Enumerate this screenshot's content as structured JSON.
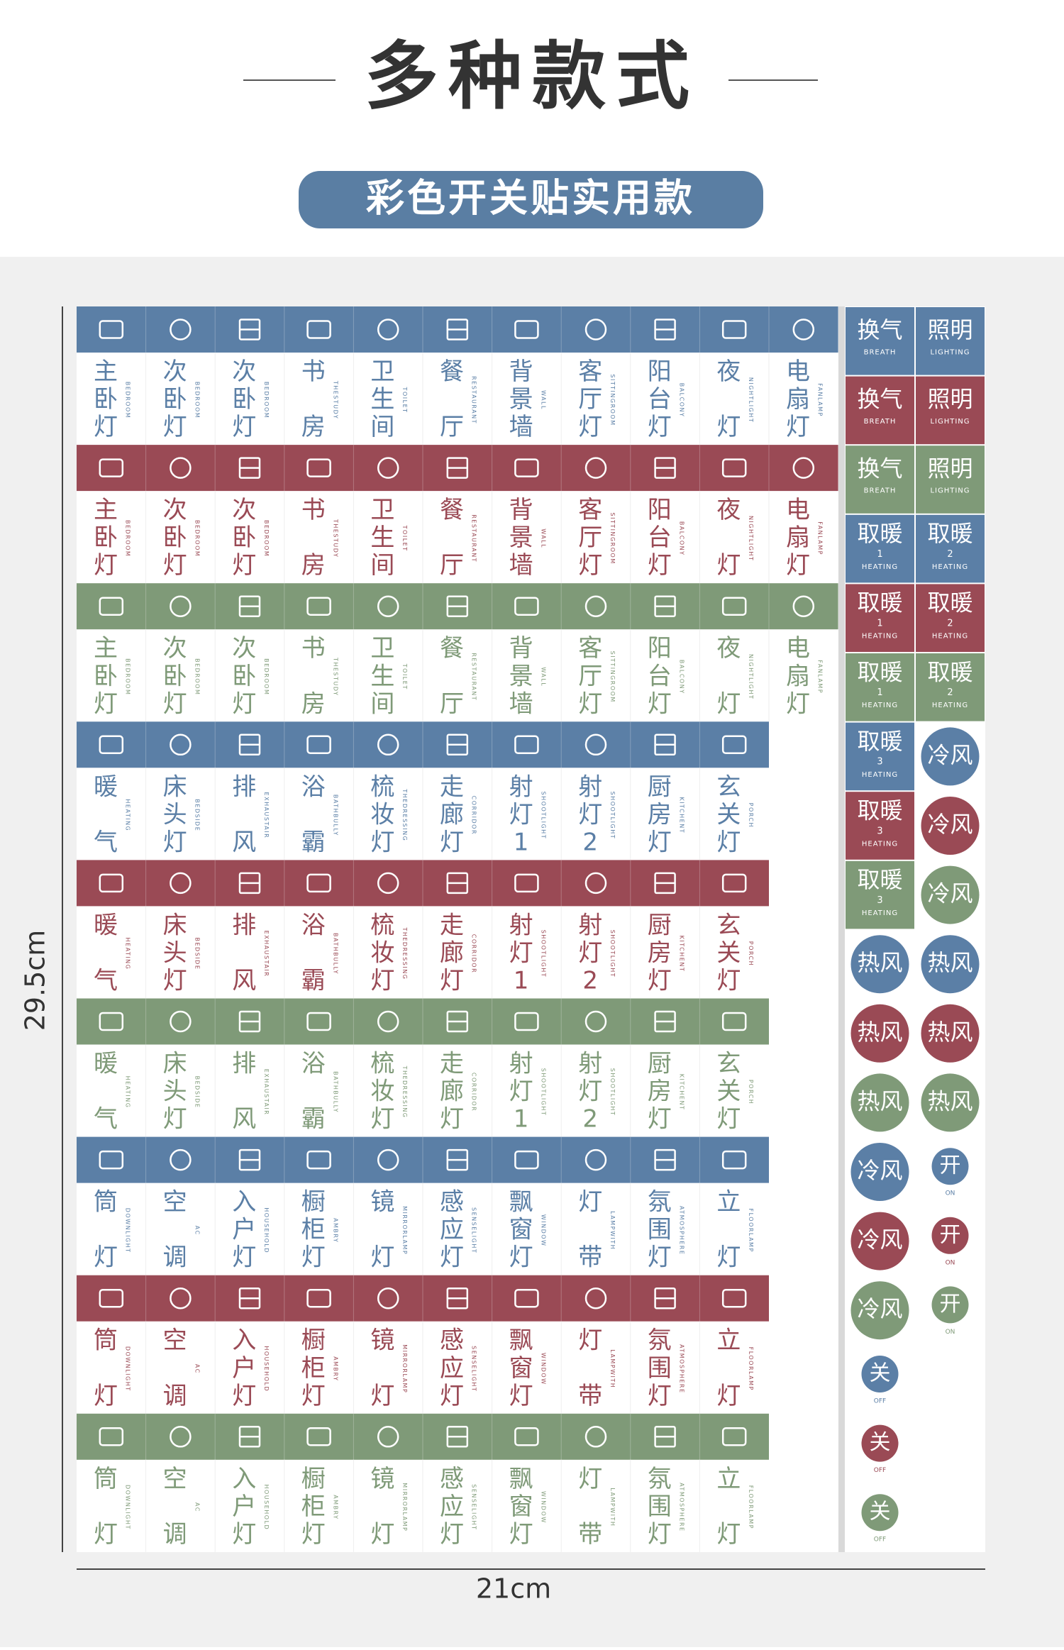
{
  "header": {
    "title": "多种款式",
    "subtitle": "彩色开关贴实用款"
  },
  "colors": {
    "blue": "#5b7fa6",
    "red": "#9a4a55",
    "green": "#7f9a78"
  },
  "sheet": {
    "row_colors": [
      "blue",
      "red",
      "green"
    ],
    "groups": [
      {
        "items": [
          {
            "label": "主卧灯",
            "en": "BEDROOM"
          },
          {
            "label": "次卧灯",
            "en": "BEDROOM"
          },
          {
            "label": "次卧灯",
            "en": "BEDROOM"
          },
          {
            "label": "书房",
            "en": "THESTUDY"
          },
          {
            "label": "卫生间",
            "en": "TOILET"
          },
          {
            "label": "餐厅",
            "en": "RESTAURANT"
          },
          {
            "label": "背景墙",
            "en": "WALL"
          },
          {
            "label": "客厅灯",
            "en": "SITTINGROOM"
          },
          {
            "label": "阳台灯",
            "en": "BALCONY"
          },
          {
            "label": "夜灯",
            "en": "NIGHTLIGHT"
          },
          {
            "label": "电扇灯",
            "en": "FANLAMP"
          }
        ]
      },
      {
        "items": [
          {
            "label": "暖气",
            "en": "HEATING"
          },
          {
            "label": "床头灯",
            "en": "BEDSIDE"
          },
          {
            "label": "排风",
            "en": "EXHAUSTAIR"
          },
          {
            "label": "浴霸",
            "en": "BATHBULLY"
          },
          {
            "label": "梳妆灯",
            "en": "THEDRESSING"
          },
          {
            "label": "走廊灯",
            "en": "CORRIDOR"
          },
          {
            "label": "射灯1",
            "en": "SHOOTLIGHT"
          },
          {
            "label": "射灯2",
            "en": "SHOOTLIGHT"
          },
          {
            "label": "厨房灯",
            "en": "KITCHENT"
          },
          {
            "label": "玄关灯",
            "en": "PORCH"
          }
        ]
      },
      {
        "items": [
          {
            "label": "筒灯",
            "en": "DOWNLIGHT"
          },
          {
            "label": "空调",
            "en": "AC"
          },
          {
            "label": "入户灯",
            "en": "HOUSEHOLD"
          },
          {
            "label": "橱柜灯",
            "en": "AMBRY"
          },
          {
            "label": "镜灯",
            "en": "MIRRORLAMP"
          },
          {
            "label": "感应灯",
            "en": "SENSELIGHT"
          },
          {
            "label": "飘窗灯",
            "en": "WINDOW"
          },
          {
            "label": "灯带",
            "en": "LAMPWITH"
          },
          {
            "label": "氛围灯",
            "en": "ATMOSPHERE"
          },
          {
            "label": "立灯",
            "en": "FLOORLAMP"
          }
        ]
      }
    ]
  },
  "side": {
    "rows": [
      [
        {
          "text": "换气",
          "en": "BREATH",
          "color": "blue",
          "shape": "square"
        },
        {
          "text": "照明",
          "en": "LIGHTING",
          "color": "blue",
          "shape": "square"
        }
      ],
      [
        {
          "text": "换气",
          "en": "BREATH",
          "color": "red",
          "shape": "square"
        },
        {
          "text": "照明",
          "en": "LIGHTING",
          "color": "red",
          "shape": "square"
        }
      ],
      [
        {
          "text": "换气",
          "en": "BREATH",
          "color": "green",
          "shape": "square"
        },
        {
          "text": "照明",
          "en": "LIGHTING",
          "color": "green",
          "shape": "square"
        }
      ],
      [
        {
          "text": "取暖",
          "num": 1,
          "en": "HEATING",
          "color": "blue",
          "shape": "square"
        },
        {
          "text": "取暖",
          "num": 2,
          "en": "HEATING",
          "color": "blue",
          "shape": "square"
        }
      ],
      [
        {
          "text": "取暖",
          "num": 1,
          "en": "HEATING",
          "color": "red",
          "shape": "square"
        },
        {
          "text": "取暖",
          "num": 2,
          "en": "HEATING",
          "color": "red",
          "shape": "square"
        }
      ],
      [
        {
          "text": "取暖",
          "num": 1,
          "en": "HEATING",
          "color": "green",
          "shape": "square"
        },
        {
          "text": "取暖",
          "num": 2,
          "en": "HEATING",
          "color": "green",
          "shape": "square"
        }
      ],
      [
        {
          "text": "取暖",
          "num": 3,
          "en": "HEATING",
          "color": "blue",
          "shape": "square"
        },
        {
          "text": "冷风",
          "color": "blue",
          "shape": "circle"
        }
      ],
      [
        {
          "text": "取暖",
          "num": 3,
          "en": "HEATING",
          "color": "red",
          "shape": "square"
        },
        {
          "text": "冷风",
          "color": "red",
          "shape": "circle"
        }
      ],
      [
        {
          "text": "取暖",
          "num": 3,
          "en": "HEATING",
          "color": "green",
          "shape": "square"
        },
        {
          "text": "冷风",
          "color": "green",
          "shape": "circle"
        }
      ],
      [
        {
          "text": "热风",
          "color": "blue",
          "shape": "circle"
        },
        {
          "text": "热风",
          "color": "blue",
          "shape": "circle"
        }
      ],
      [
        {
          "text": "热风",
          "color": "red",
          "shape": "circle"
        },
        {
          "text": "热风",
          "color": "red",
          "shape": "circle"
        }
      ],
      [
        {
          "text": "热风",
          "color": "green",
          "shape": "circle"
        },
        {
          "text": "热风",
          "color": "green",
          "shape": "circle"
        }
      ],
      [
        {
          "text": "冷风",
          "color": "blue",
          "shape": "circle"
        },
        {
          "text": "开",
          "en": "ON",
          "color": "blue",
          "shape": "dot"
        }
      ],
      [
        {
          "text": "冷风",
          "color": "red",
          "shape": "circle"
        },
        {
          "text": "开",
          "en": "ON",
          "color": "red",
          "shape": "dot"
        }
      ],
      [
        {
          "text": "冷风",
          "color": "green",
          "shape": "circle"
        },
        {
          "text": "开",
          "en": "ON",
          "color": "green",
          "shape": "dot"
        }
      ],
      [
        {
          "text": "关",
          "en": "OFF",
          "color": "blue",
          "shape": "dot"
        }
      ],
      [
        {
          "text": "关",
          "en": "OFF",
          "color": "red",
          "shape": "dot"
        }
      ],
      [
        {
          "text": "关",
          "en": "OFF",
          "color": "green",
          "shape": "dot"
        }
      ]
    ]
  },
  "dimensions": {
    "height": "29.5cm",
    "width": "21cm"
  }
}
